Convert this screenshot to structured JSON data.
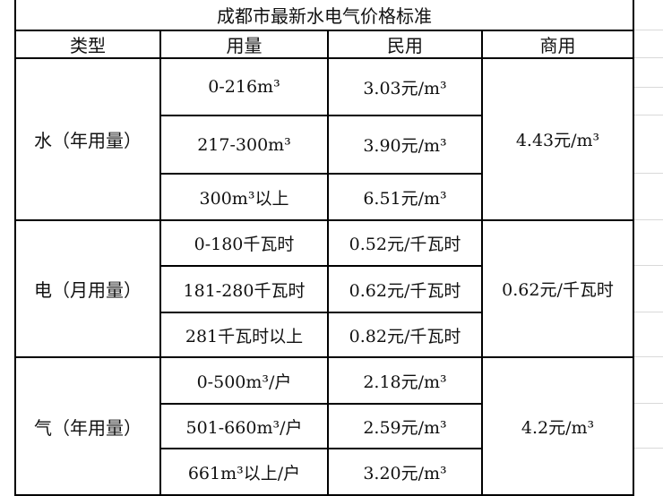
{
  "title": "成都市最新水电气价格标准",
  "headers": [
    "类型",
    "用量",
    "民用",
    "商用"
  ],
  "groups": [
    {
      "type": "水（年用量）",
      "commercial": "4.43元/m³",
      "rows": [
        {
          "usage": "0-216m³",
          "residential": "3.03元/m³"
        },
        {
          "usage": "217-300m³",
          "residential": "3.90元/m³"
        },
        {
          "usage": "300m³以上",
          "residential": "6.51元/m³"
        }
      ]
    },
    {
      "type": "电（月用量）",
      "commercial": "0.62元/千瓦时",
      "rows": [
        {
          "usage": "0-180千瓦时",
          "residential": "0.52元/千瓦时"
        },
        {
          "usage": "181-280千瓦时",
          "residential": "0.62元/千瓦时"
        },
        {
          "usage": "281千瓦时以上",
          "residential": "0.82元/千瓦时"
        }
      ]
    },
    {
      "type": "气（年用量）",
      "commercial": "4.2元/m³",
      "rows": [
        {
          "usage": "0-500m³/户",
          "residential": "2.18元/m³"
        },
        {
          "usage": "501-660m³/户",
          "residential": "2.59元/m³"
        },
        {
          "usage": "661m³以上/户",
          "residential": "3.20元/m³"
        }
      ]
    }
  ]
}
